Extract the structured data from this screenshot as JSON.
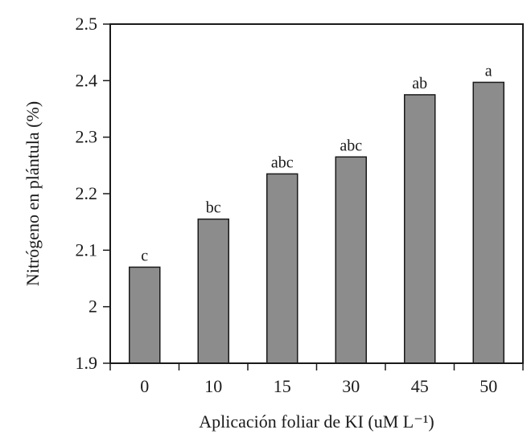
{
  "chart_data": {
    "type": "bar",
    "title": "",
    "categories": [
      "0",
      "10",
      "15",
      "30",
      "45",
      "50"
    ],
    "values": [
      2.07,
      2.155,
      2.235,
      2.265,
      2.375,
      2.397
    ],
    "significance_letters": [
      "c",
      "bc",
      "abc",
      "abc",
      "ab",
      "a"
    ],
    "xlabel": "Aplicación foliar de KI (uM L⁻¹)",
    "ylabel": "Nitrógeno en plántula (%)",
    "ylim": [
      1.9,
      2.5
    ],
    "yticks": [
      1.9,
      2,
      2.1,
      2.2,
      2.3,
      2.4,
      2.5
    ],
    "ytick_labels": [
      "1.9",
      "2",
      "2.1",
      "2.2",
      "2.3",
      "2.4",
      "2.5"
    ],
    "grid": false,
    "bar_color": "#8c8c8c",
    "axis_color": "#1a1a1a"
  }
}
